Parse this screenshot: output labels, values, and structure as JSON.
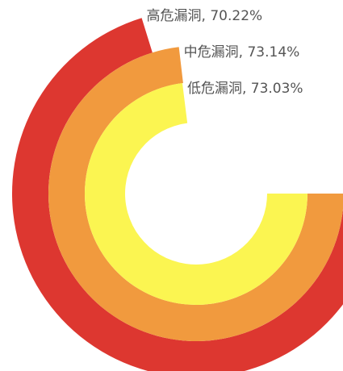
{
  "chart_data": {
    "type": "radial-bar",
    "categories": [
      "高危漏洞",
      "中危漏洞",
      "低危漏洞"
    ],
    "values": [
      70.22,
      73.14,
      73.03
    ],
    "value_labels": [
      "高危漏洞, 70.22%",
      "中危漏洞, 73.14%",
      "低危漏洞, 73.03%"
    ],
    "colors": [
      "#dd3730",
      "#f19a3e",
      "#fbf551"
    ],
    "ylim": [
      0,
      100
    ]
  }
}
